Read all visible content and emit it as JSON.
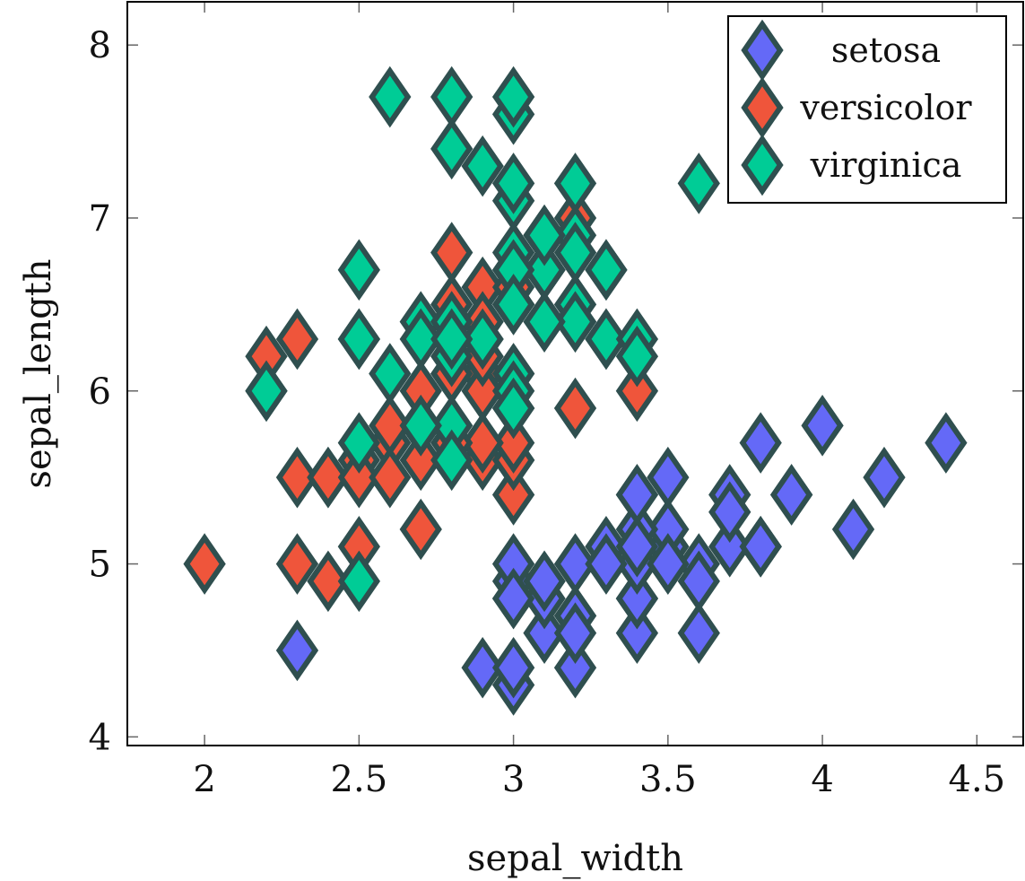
{
  "chart_data": {
    "type": "scatter",
    "xlabel": "sepal_width",
    "ylabel": "sepal_length",
    "xlim": [
      1.75,
      4.65
    ],
    "ylim": [
      3.95,
      8.25
    ],
    "xticks": [
      2,
      2.5,
      3,
      3.5,
      4,
      4.5
    ],
    "yticks": [
      4,
      5,
      6,
      7,
      8
    ],
    "xtick_labels": [
      "2",
      "2.5",
      "3",
      "3.5",
      "4",
      "4.5"
    ],
    "ytick_labels": [
      "4",
      "5",
      "6",
      "7",
      "8"
    ],
    "marker": "diamond",
    "marker_edge_color": "#2f4f4f",
    "legend_position": "top-right",
    "grid": false,
    "series": [
      {
        "name": "setosa",
        "color": "#6469f7",
        "points": [
          [
            3.5,
            5.1
          ],
          [
            3.0,
            4.9
          ],
          [
            3.2,
            4.7
          ],
          [
            3.1,
            4.6
          ],
          [
            3.6,
            5.0
          ],
          [
            3.9,
            5.4
          ],
          [
            3.4,
            4.6
          ],
          [
            3.4,
            5.0
          ],
          [
            2.9,
            4.4
          ],
          [
            3.1,
            4.9
          ],
          [
            3.7,
            5.4
          ],
          [
            3.4,
            4.8
          ],
          [
            3.0,
            4.8
          ],
          [
            3.0,
            4.3
          ],
          [
            4.0,
            5.8
          ],
          [
            4.4,
            5.7
          ],
          [
            3.9,
            5.4
          ],
          [
            3.5,
            5.1
          ],
          [
            3.8,
            5.7
          ],
          [
            3.8,
            5.1
          ],
          [
            3.4,
            5.4
          ],
          [
            3.7,
            5.1
          ],
          [
            3.6,
            4.6
          ],
          [
            3.3,
            5.1
          ],
          [
            3.4,
            4.8
          ],
          [
            3.0,
            5.0
          ],
          [
            3.4,
            5.0
          ],
          [
            3.5,
            5.2
          ],
          [
            3.4,
            5.2
          ],
          [
            3.2,
            4.7
          ],
          [
            3.1,
            4.8
          ],
          [
            3.4,
            5.4
          ],
          [
            4.1,
            5.2
          ],
          [
            4.2,
            5.5
          ],
          [
            3.1,
            4.9
          ],
          [
            3.2,
            5.0
          ],
          [
            3.5,
            5.5
          ],
          [
            3.6,
            4.9
          ],
          [
            3.0,
            4.4
          ],
          [
            3.4,
            5.1
          ],
          [
            3.5,
            5.0
          ],
          [
            2.3,
            4.5
          ],
          [
            3.2,
            4.4
          ],
          [
            3.5,
            5.0
          ],
          [
            3.8,
            5.1
          ],
          [
            3.0,
            4.8
          ],
          [
            3.8,
            5.1
          ],
          [
            3.2,
            4.6
          ],
          [
            3.7,
            5.3
          ],
          [
            3.3,
            5.0
          ]
        ]
      },
      {
        "name": "versicolor",
        "color": "#ef553b",
        "points": [
          [
            3.2,
            7.0
          ],
          [
            3.2,
            6.4
          ],
          [
            3.1,
            6.9
          ],
          [
            2.3,
            5.5
          ],
          [
            2.8,
            6.5
          ],
          [
            2.8,
            5.7
          ],
          [
            3.3,
            6.3
          ],
          [
            2.4,
            4.9
          ],
          [
            2.9,
            6.6
          ],
          [
            2.7,
            5.2
          ],
          [
            2.0,
            5.0
          ],
          [
            3.0,
            5.9
          ],
          [
            2.2,
            6.0
          ],
          [
            2.9,
            6.1
          ],
          [
            2.9,
            5.6
          ],
          [
            3.1,
            6.7
          ],
          [
            3.0,
            5.6
          ],
          [
            2.7,
            5.8
          ],
          [
            2.2,
            6.2
          ],
          [
            2.5,
            5.6
          ],
          [
            3.2,
            5.9
          ],
          [
            2.8,
            6.1
          ],
          [
            2.5,
            6.3
          ],
          [
            2.8,
            6.1
          ],
          [
            2.9,
            6.4
          ],
          [
            3.0,
            6.6
          ],
          [
            2.8,
            6.8
          ],
          [
            3.0,
            6.7
          ],
          [
            2.9,
            6.0
          ],
          [
            2.6,
            5.7
          ],
          [
            2.4,
            5.5
          ],
          [
            2.4,
            5.5
          ],
          [
            2.7,
            5.8
          ],
          [
            2.7,
            6.0
          ],
          [
            3.0,
            5.4
          ],
          [
            3.4,
            6.0
          ],
          [
            3.1,
            6.7
          ],
          [
            2.3,
            6.3
          ],
          [
            3.0,
            5.6
          ],
          [
            2.5,
            5.5
          ],
          [
            2.6,
            5.5
          ],
          [
            3.0,
            6.1
          ],
          [
            2.6,
            5.8
          ],
          [
            2.3,
            5.0
          ],
          [
            2.7,
            5.6
          ],
          [
            3.0,
            5.7
          ],
          [
            2.9,
            5.7
          ],
          [
            2.9,
            6.2
          ],
          [
            2.5,
            5.1
          ],
          [
            2.8,
            5.7
          ]
        ]
      },
      {
        "name": "virginica",
        "color": "#00cc96",
        "points": [
          [
            3.3,
            6.3
          ],
          [
            2.7,
            5.8
          ],
          [
            3.0,
            7.1
          ],
          [
            2.9,
            6.3
          ],
          [
            3.0,
            6.5
          ],
          [
            3.0,
            7.6
          ],
          [
            2.5,
            4.9
          ],
          [
            2.9,
            7.3
          ],
          [
            2.5,
            6.7
          ],
          [
            3.6,
            7.2
          ],
          [
            3.2,
            6.5
          ],
          [
            2.7,
            6.4
          ],
          [
            3.0,
            6.8
          ],
          [
            2.5,
            5.7
          ],
          [
            2.8,
            5.8
          ],
          [
            3.2,
            6.4
          ],
          [
            3.0,
            6.5
          ],
          [
            3.8,
            7.7
          ],
          [
            2.6,
            7.7
          ],
          [
            2.2,
            6.0
          ],
          [
            3.2,
            6.9
          ],
          [
            2.8,
            5.6
          ],
          [
            2.8,
            7.7
          ],
          [
            2.7,
            6.3
          ],
          [
            3.3,
            6.7
          ],
          [
            3.2,
            7.2
          ],
          [
            2.8,
            6.2
          ],
          [
            3.0,
            6.1
          ],
          [
            2.8,
            6.4
          ],
          [
            3.0,
            7.2
          ],
          [
            2.8,
            7.4
          ],
          [
            3.8,
            7.9
          ],
          [
            2.8,
            6.4
          ],
          [
            2.8,
            6.3
          ],
          [
            2.6,
            6.1
          ],
          [
            3.0,
            7.7
          ],
          [
            3.4,
            6.3
          ],
          [
            3.1,
            6.4
          ],
          [
            3.0,
            6.0
          ],
          [
            3.1,
            6.9
          ],
          [
            3.1,
            6.7
          ],
          [
            3.1,
            6.9
          ],
          [
            2.7,
            5.8
          ],
          [
            3.2,
            6.8
          ],
          [
            3.3,
            6.7
          ],
          [
            3.0,
            6.7
          ],
          [
            2.5,
            6.3
          ],
          [
            3.0,
            6.5
          ],
          [
            3.4,
            6.2
          ],
          [
            3.0,
            5.9
          ]
        ]
      }
    ]
  }
}
